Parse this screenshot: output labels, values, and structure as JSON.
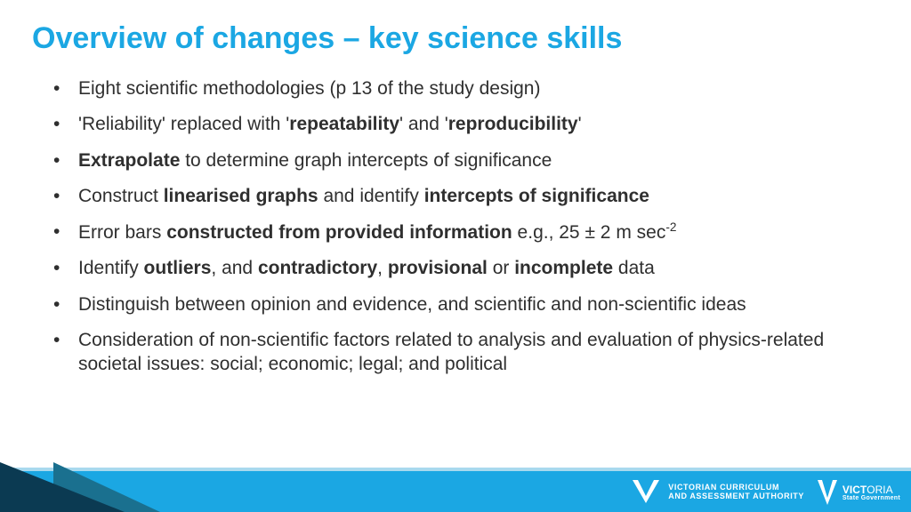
{
  "title": "Overview of changes – key science skills",
  "title_color": "#1ba7e3",
  "bullets": [
    {
      "html": "Eight scientific methodologies (p 13 of the study design)"
    },
    {
      "html": "'Reliability' replaced with '<b>repeatability</b>' and '<b>reproducibility</b>'"
    },
    {
      "html": "<b>Extrapolate</b> to determine graph intercepts of significance"
    },
    {
      "html": "Construct <b>linearised graphs</b> and identify <b>intercepts of significance</b>"
    },
    {
      "html": "Error bars <b>constructed from provided information</b> e.g., 25 ± 2 m sec<sup>-2</sup>"
    },
    {
      "html": "Identify <b>outliers</b>, and <b>contradictory</b>, <b>provisional</b> or <b>incomplete</b> data"
    },
    {
      "html": "Distinguish between opinion and evidence, and scientific and non-scientific ideas"
    },
    {
      "html": "Consideration of non-scientific factors related to analysis and evaluation of physics-related societal issues: social; economic; legal; and political"
    }
  ],
  "footer": {
    "band_color": "#1ba7e3",
    "wedge_dark": "#0b3a52",
    "wedge_mid": "#1a708f",
    "vcaa_line1": "VICTORIAN CURRICULUM",
    "vcaa_line2": "AND ASSESSMENT AUTHORITY",
    "gov_vict": "VICT",
    "gov_oria": "ORIA",
    "gov_sub": "State Government"
  }
}
